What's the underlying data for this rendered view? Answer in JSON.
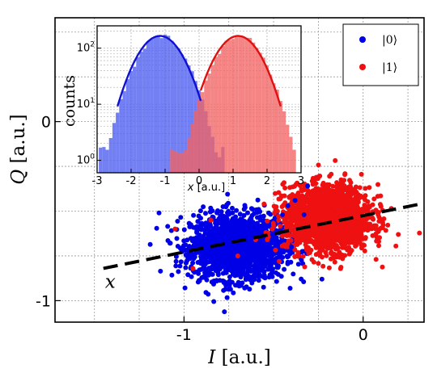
{
  "chart_data": [
    {
      "type": "scatter",
      "xlabel": "I [a.u.]",
      "ylabel": "Q [a.u.]",
      "xlim": [
        -1.72,
        0.34
      ],
      "ylim": [
        -1.12,
        0.58
      ],
      "xticks": [
        -1,
        0
      ],
      "xtick_labels": [
        "-1",
        "0"
      ],
      "yticks": [
        0,
        -1
      ],
      "ytick_labels": [
        "0",
        "-1"
      ],
      "grid": true,
      "legend": {
        "placement": "top-right",
        "entries": [
          "|0⟩",
          "|1⟩"
        ]
      },
      "series": [
        {
          "name": "|0⟩",
          "color": "#0000e6",
          "center": [
            -0.7,
            -0.7
          ],
          "spread": [
            0.13,
            0.09
          ],
          "points": 1900
        },
        {
          "name": "|1⟩",
          "color": "#ee1111",
          "center": [
            -0.2,
            -0.54
          ],
          "spread": [
            0.12,
            0.09
          ],
          "points": 1900
        }
      ],
      "cross_points": [
        {
          "state": "|0⟩",
          "xy": [
            [
              -0.38,
              -0.44
            ],
            [
              -0.33,
              -0.52
            ],
            [
              -0.45,
              -0.52
            ],
            [
              -0.23,
              -0.88
            ],
            [
              -0.46,
              -0.61
            ],
            [
              -0.31,
              -0.36
            ],
            [
              -0.4,
              -0.7
            ],
            [
              -0.42,
              -0.47
            ]
          ]
        },
        {
          "state": "|1⟩",
          "xy": [
            [
              -0.6,
              -0.66
            ],
            [
              -0.7,
              -0.75
            ],
            [
              -0.95,
              -0.82
            ],
            [
              -1.05,
              -0.6
            ],
            [
              -0.5,
              -0.58
            ],
            [
              -0.85,
              -0.55
            ],
            [
              -0.42,
              -0.68
            ]
          ]
        }
      ],
      "projection_axis": {
        "label": "x",
        "style": "dashed",
        "from": [
          -1.45,
          -0.82
        ],
        "to": [
          0.32,
          -0.46
        ]
      }
    },
    {
      "type": "histogram",
      "xlabel": "x [a.u.]",
      "ylabel": "counts",
      "xlim": [
        -3,
        3
      ],
      "xticks": [
        -3,
        -2,
        -1,
        0,
        1,
        2,
        3
      ],
      "xtick_labels": [
        "-3",
        "-2",
        "-1",
        "0",
        "1",
        "2",
        "3"
      ],
      "yscale": "log",
      "ylim": [
        0.6,
        250
      ],
      "yticks": [
        1,
        10,
        100
      ],
      "ytick_labels": [
        "10^0",
        "10^1",
        "10^2"
      ],
      "grid": true,
      "series": [
        {
          "name": "|0⟩",
          "color": "#4a5cf0",
          "fit_color": "#1010d0",
          "fit": {
            "mean": -1.15,
            "sigma": 0.52,
            "peak": 165,
            "range": [
              -2.4,
              0.05
            ]
          }
        },
        {
          "name": "|1⟩",
          "color": "#f26262",
          "fit_color": "#e01010",
          "fit": {
            "mean": 1.15,
            "sigma": 0.52,
            "peak": 165,
            "range": [
              0.05,
              2.4
            ]
          }
        }
      ]
    }
  ]
}
